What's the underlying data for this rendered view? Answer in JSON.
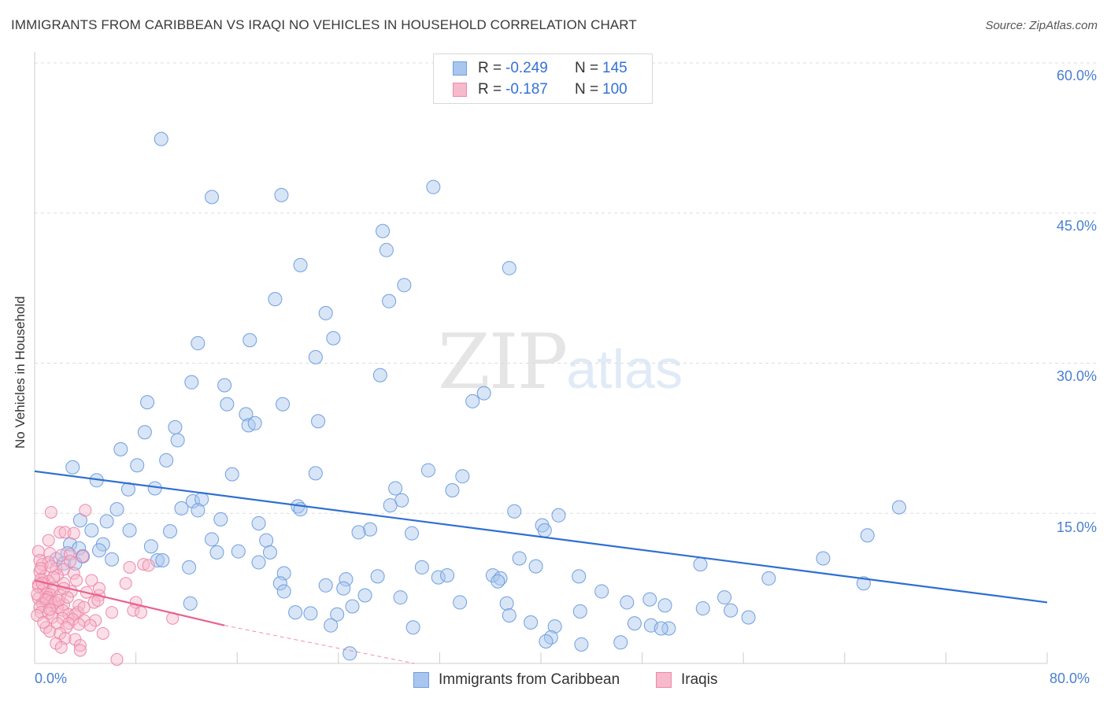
{
  "header": {
    "title": "IMMIGRANTS FROM CARIBBEAN VS IRAQI NO VEHICLES IN HOUSEHOLD CORRELATION CHART",
    "source": "Source: ZipAtlas.com"
  },
  "watermark": {
    "zip": "ZIP",
    "atlas": "atlas"
  },
  "legend_top": {
    "rows": [
      {
        "r_label": "R =",
        "r_value": "-0.249",
        "n_label": "N =",
        "n_value": "145"
      },
      {
        "r_label": "R =",
        "r_value": "-0.187",
        "n_label": "N =",
        "n_value": "100"
      }
    ]
  },
  "colors": {
    "blue_fill": "#a9c6ee",
    "blue_stroke": "#6f9fe0",
    "blue_line": "#2f6fd0",
    "pink_fill": "#f7b9cc",
    "pink_stroke": "#ee88a8",
    "pink_line": "#e8628e",
    "axis_label": "#4a7fd0",
    "grid": "#dddddd"
  },
  "chart_data": {
    "type": "scatter",
    "title": "IMMIGRANTS FROM CARIBBEAN VS IRAQI NO VEHICLES IN HOUSEHOLD CORRELATION CHART",
    "xlabel": "",
    "ylabel": "No Vehicles in Household",
    "xlim": [
      0,
      80
    ],
    "ylim": [
      0,
      60
    ],
    "x_tick_labels": [
      "0.0%",
      "80.0%"
    ],
    "y_tick_labels": [
      "15.0%",
      "30.0%",
      "45.0%",
      "60.0%"
    ],
    "y_ticks": [
      15,
      30,
      45,
      60
    ],
    "legend": [
      "Immigrants from Caribbean",
      "Iraqis"
    ],
    "series": [
      {
        "name": "Immigrants from Caribbean",
        "r": -0.249,
        "n": 145,
        "trend": {
          "x0": 0,
          "y0": 19.2,
          "x1": 80,
          "y1": 6.1
        },
        "points": [
          [
            10,
            52.4
          ],
          [
            14,
            46.6
          ],
          [
            19.5,
            46.8
          ],
          [
            31.5,
            47.6
          ],
          [
            27.5,
            43.2
          ],
          [
            27.8,
            41.3
          ],
          [
            21,
            39.8
          ],
          [
            37.5,
            39.5
          ],
          [
            29.2,
            37.8
          ],
          [
            19,
            36.4
          ],
          [
            28,
            36.2
          ],
          [
            23,
            35
          ],
          [
            17,
            32.3
          ],
          [
            12.9,
            32
          ],
          [
            23.6,
            32.5
          ],
          [
            22.2,
            30.6
          ],
          [
            27.3,
            28.8
          ],
          [
            12.4,
            28.1
          ],
          [
            15,
            27.8
          ],
          [
            35.5,
            27
          ],
          [
            34.6,
            26.2
          ],
          [
            8.9,
            26.1
          ],
          [
            15.2,
            25.9
          ],
          [
            19.6,
            25.9
          ],
          [
            16.7,
            24.9
          ],
          [
            22.4,
            24.2
          ],
          [
            16.9,
            23.8
          ],
          [
            17.4,
            24
          ],
          [
            11.1,
            23.6
          ],
          [
            8.7,
            23.1
          ],
          [
            11.3,
            22.3
          ],
          [
            6.8,
            21.4
          ],
          [
            10.4,
            20.3
          ],
          [
            8.1,
            19.8
          ],
          [
            3,
            19.6
          ],
          [
            31.1,
            19.3
          ],
          [
            22.2,
            19
          ],
          [
            15.6,
            18.9
          ],
          [
            33.8,
            18.7
          ],
          [
            4.9,
            18.3
          ],
          [
            7.4,
            17.4
          ],
          [
            9.5,
            17.5
          ],
          [
            28.5,
            17.5
          ],
          [
            33,
            17.3
          ],
          [
            29,
            16.3
          ],
          [
            12.5,
            16.2
          ],
          [
            13.2,
            16.4
          ],
          [
            28.1,
            15.8
          ],
          [
            20.8,
            15.7
          ],
          [
            21,
            15.4
          ],
          [
            6.5,
            15.4
          ],
          [
            11.6,
            15.5
          ],
          [
            12.9,
            15.3
          ],
          [
            37.9,
            15.2
          ],
          [
            41.4,
            14.8
          ],
          [
            68.3,
            15.6
          ],
          [
            14.7,
            14.4
          ],
          [
            3.6,
            14.3
          ],
          [
            5.7,
            14.2
          ],
          [
            17.7,
            14
          ],
          [
            40.1,
            13.8
          ],
          [
            26.5,
            13.4
          ],
          [
            25.6,
            13.1
          ],
          [
            4.5,
            13.3
          ],
          [
            7.5,
            13.3
          ],
          [
            10.7,
            13.2
          ],
          [
            40.3,
            13.3
          ],
          [
            29.8,
            13
          ],
          [
            65.8,
            12.8
          ],
          [
            14,
            12.4
          ],
          [
            18.3,
            12.3
          ],
          [
            5.4,
            11.9
          ],
          [
            2.8,
            11.9
          ],
          [
            9.2,
            11.7
          ],
          [
            3.5,
            11.5
          ],
          [
            5.1,
            11.3
          ],
          [
            16.1,
            11.2
          ],
          [
            14.4,
            11.1
          ],
          [
            18.6,
            11.1
          ],
          [
            2.6,
            11
          ],
          [
            3.8,
            10.7
          ],
          [
            1.7,
            10.4
          ],
          [
            6.1,
            10.4
          ],
          [
            9.7,
            10.3
          ],
          [
            2.3,
            10
          ],
          [
            3.2,
            10
          ],
          [
            17.7,
            10.1
          ],
          [
            10.1,
            10.3
          ],
          [
            38.3,
            10.5
          ],
          [
            62.3,
            10.5
          ],
          [
            52.6,
            9.9
          ],
          [
            12.2,
            9.6
          ],
          [
            30.6,
            9.6
          ],
          [
            39.6,
            9.7
          ],
          [
            19.7,
            9
          ],
          [
            24.6,
            8.4
          ],
          [
            27.1,
            8.7
          ],
          [
            31.9,
            8.6
          ],
          [
            32.6,
            8.8
          ],
          [
            36.2,
            8.8
          ],
          [
            36.8,
            8.5
          ],
          [
            43,
            8.7
          ],
          [
            36.6,
            8.2
          ],
          [
            19.4,
            8
          ],
          [
            23,
            7.8
          ],
          [
            24.4,
            7.5
          ],
          [
            19.7,
            7.2
          ],
          [
            58,
            8.5
          ],
          [
            65.5,
            8
          ],
          [
            44.8,
            7.2
          ],
          [
            26.1,
            6.8
          ],
          [
            28.9,
            6.6
          ],
          [
            12.3,
            6
          ],
          [
            33.6,
            6.1
          ],
          [
            37.3,
            6
          ],
          [
            25.1,
            5.7
          ],
          [
            46.8,
            6.1
          ],
          [
            48.6,
            6.4
          ],
          [
            49.8,
            5.8
          ],
          [
            54.5,
            6.6
          ],
          [
            20.6,
            5.1
          ],
          [
            21.8,
            5
          ],
          [
            23.9,
            4.9
          ],
          [
            37.5,
            4.8
          ],
          [
            43.1,
            5.2
          ],
          [
            55,
            5.3
          ],
          [
            56.4,
            4.6
          ],
          [
            52.8,
            5.5
          ],
          [
            39.2,
            4.1
          ],
          [
            48.7,
            3.8
          ],
          [
            50.1,
            3.5
          ],
          [
            47.4,
            4
          ],
          [
            29.9,
            3.6
          ],
          [
            41.1,
            3.7
          ],
          [
            23.4,
            3.8
          ],
          [
            49.5,
            3.5
          ],
          [
            40.8,
            2.6
          ],
          [
            40.4,
            2.2
          ],
          [
            43.2,
            1.9
          ],
          [
            46.3,
            2.1
          ],
          [
            24.9,
            1
          ]
        ]
      },
      {
        "name": "Iraqis",
        "r": -0.187,
        "n": 100,
        "trend": {
          "x0": 0,
          "y0": 8.3,
          "x1": 15,
          "y1": 3.8,
          "x_dash_end": 30,
          "y_dash_end": 0
        },
        "points": [
          [
            1.3,
            15.1
          ],
          [
            4,
            15.3
          ],
          [
            1.1,
            12.3
          ],
          [
            2,
            13.1
          ],
          [
            2.4,
            13.1
          ],
          [
            3.1,
            13
          ],
          [
            0.3,
            11.2
          ],
          [
            1.2,
            11
          ],
          [
            0.4,
            10.3
          ],
          [
            2.1,
            10.8
          ],
          [
            2.8,
            10.9
          ],
          [
            3.8,
            10.7
          ],
          [
            1.1,
            10.1
          ],
          [
            2.8,
            10.2
          ],
          [
            0.6,
            9.9
          ],
          [
            1.7,
            9.5
          ],
          [
            2.3,
            9.4
          ],
          [
            0.4,
            9.2
          ],
          [
            0.8,
            8.7
          ],
          [
            1.8,
            8.8
          ],
          [
            3.1,
            9
          ],
          [
            7.5,
            9.6
          ],
          [
            8.6,
            9.9
          ],
          [
            9,
            9.8
          ],
          [
            0.5,
            8.4
          ],
          [
            1.1,
            8.2
          ],
          [
            2.3,
            8
          ],
          [
            0.3,
            7.9
          ],
          [
            1.5,
            7.6
          ],
          [
            0.7,
            7.4
          ],
          [
            1.4,
            7.3
          ],
          [
            2.9,
            7.2
          ],
          [
            0.9,
            7
          ],
          [
            1.2,
            6.9
          ],
          [
            2,
            6.8
          ],
          [
            1,
            6.6
          ],
          [
            5.1,
            6.8
          ],
          [
            7.2,
            8
          ],
          [
            4.5,
            8.3
          ],
          [
            5.1,
            7.5
          ],
          [
            0.3,
            6.5
          ],
          [
            0.8,
            6.3
          ],
          [
            1.3,
            6.2
          ],
          [
            0.6,
            6
          ],
          [
            2.3,
            5.9
          ],
          [
            1.4,
            5.8
          ],
          [
            0.4,
            5.6
          ],
          [
            1.8,
            5.6
          ],
          [
            2.2,
            5.3
          ],
          [
            4.7,
            6.1
          ],
          [
            5,
            6.3
          ],
          [
            3.5,
            5.8
          ],
          [
            8,
            6.1
          ],
          [
            7.8,
            5.3
          ],
          [
            0.5,
            5.1
          ],
          [
            1.1,
            5
          ],
          [
            2.7,
            4.9
          ],
          [
            3.2,
            4.9
          ],
          [
            3.4,
            5.1
          ],
          [
            6.1,
            5.1
          ],
          [
            8.4,
            5.1
          ],
          [
            0.2,
            4.8
          ],
          [
            1.4,
            4.6
          ],
          [
            2.2,
            4.5
          ],
          [
            3,
            4.4
          ],
          [
            3.9,
            4.3
          ],
          [
            4.8,
            4.3
          ],
          [
            10.9,
            4.5
          ],
          [
            1.8,
            4
          ],
          [
            2.7,
            4
          ],
          [
            3.5,
            3.9
          ],
          [
            4.4,
            3.8
          ],
          [
            0.9,
            3.6
          ],
          [
            2.5,
            3.6
          ],
          [
            1.2,
            3.2
          ],
          [
            2,
            3
          ],
          [
            5.4,
            3
          ],
          [
            2.4,
            2.5
          ],
          [
            3.2,
            2.4
          ],
          [
            1.7,
            2
          ],
          [
            3.6,
            1.8
          ],
          [
            2.1,
            1.6
          ],
          [
            3.6,
            1.3
          ],
          [
            6.5,
            0.4
          ],
          [
            0.3,
            7.7
          ],
          [
            0.6,
            8
          ],
          [
            0.9,
            6.4
          ],
          [
            1.6,
            6.1
          ],
          [
            1.9,
            6.3
          ],
          [
            1.2,
            5.4
          ],
          [
            0.7,
            4.1
          ],
          [
            2.6,
            6.6
          ],
          [
            3.3,
            8.3
          ],
          [
            4.1,
            7.1
          ],
          [
            0.2,
            6.9
          ],
          [
            1.5,
            8.6
          ],
          [
            2.3,
            7.5
          ],
          [
            0.5,
            9.5
          ],
          [
            1.3,
            9.7
          ],
          [
            3.9,
            5.6
          ]
        ]
      }
    ]
  }
}
